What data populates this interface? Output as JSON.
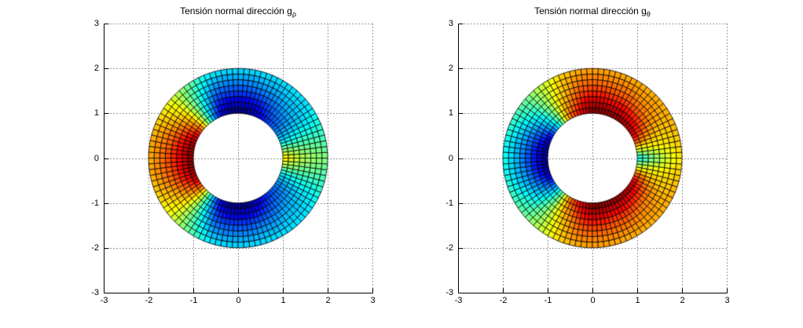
{
  "styles": {
    "background": "#ffffff",
    "axis_color": "#000000",
    "grid_color": "#3a3a3a",
    "mesh_edge_color": "#000000",
    "text_color": "#000000"
  },
  "chart_data": [
    {
      "type": "heatmap",
      "geometry": "annulus-mesh",
      "title": "Tensión normal dirección g_ρ",
      "title_base": "Tensión normal dirección g",
      "title_subscript": "ρ",
      "xlabel": "",
      "ylabel": "",
      "xlim": [
        -3,
        3
      ],
      "ylim": [
        -3,
        3
      ],
      "xticks": [
        -3,
        -2,
        -1,
        0,
        1,
        2,
        3
      ],
      "yticks": [
        -3,
        -2,
        -1,
        0,
        1,
        2,
        3
      ],
      "grid": "dotted",
      "colormap": "jet",
      "color_scale": {
        "min": -1,
        "max": 1
      },
      "annulus": {
        "inner_radius": 1,
        "outer_radius": 2,
        "n_theta": 96,
        "n_r": 8
      },
      "field": {
        "description": "normal stress in radial direction g_rho sampled on (theta,rho) grid, symmetric about x-axis; values normalized to colormap range",
        "symmetric_about_x_axis": true,
        "theta_deg": [
          0,
          10,
          20,
          30,
          40,
          50,
          60,
          70,
          80,
          90,
          100,
          110,
          120,
          130,
          140,
          150,
          160,
          170,
          180
        ],
        "rho": [
          1.0,
          1.25,
          1.5,
          1.75,
          2.0
        ],
        "values": [
          [
            0.35,
            0.2,
            0.1,
            0.05,
            0.0
          ],
          [
            0.05,
            0.0,
            -0.05,
            -0.05,
            -0.1
          ],
          [
            -0.3,
            -0.25,
            -0.2,
            -0.2,
            -0.15
          ],
          [
            -0.45,
            -0.4,
            -0.35,
            -0.3,
            -0.25
          ],
          [
            -0.55,
            -0.5,
            -0.4,
            -0.35,
            -0.3
          ],
          [
            -0.65,
            -0.55,
            -0.45,
            -0.35,
            -0.3
          ],
          [
            -0.75,
            -0.65,
            -0.5,
            -0.4,
            -0.3
          ],
          [
            -0.9,
            -0.75,
            -0.55,
            -0.4,
            -0.3
          ],
          [
            -1.0,
            -0.8,
            -0.6,
            -0.45,
            -0.3
          ],
          [
            -1.0,
            -0.8,
            -0.6,
            -0.45,
            -0.3
          ],
          [
            -1.0,
            -0.8,
            -0.6,
            -0.45,
            -0.3
          ],
          [
            -0.85,
            -0.7,
            -0.55,
            -0.4,
            -0.25
          ],
          [
            -0.5,
            -0.4,
            -0.3,
            -0.2,
            -0.1
          ],
          [
            0.0,
            0.0,
            0.0,
            0.0,
            0.05
          ],
          [
            0.5,
            0.4,
            0.3,
            0.25,
            0.2
          ],
          [
            0.8,
            0.6,
            0.45,
            0.35,
            0.3
          ],
          [
            0.95,
            0.75,
            0.55,
            0.45,
            0.35
          ],
          [
            1.0,
            0.8,
            0.6,
            0.5,
            0.4
          ],
          [
            1.0,
            0.8,
            0.65,
            0.5,
            0.4
          ]
        ]
      }
    },
    {
      "type": "heatmap",
      "geometry": "annulus-mesh",
      "title": "Tensión normal dirección g_θ",
      "title_base": "Tensión normal dirección g",
      "title_subscript": "θ",
      "xlabel": "",
      "ylabel": "",
      "xlim": [
        -3,
        3
      ],
      "ylim": [
        -3,
        3
      ],
      "xticks": [
        -3,
        -2,
        -1,
        0,
        1,
        2,
        3
      ],
      "yticks": [
        -3,
        -2,
        -1,
        0,
        1,
        2,
        3
      ],
      "grid": "dotted",
      "colormap": "jet",
      "color_scale": {
        "min": -1,
        "max": 1
      },
      "annulus": {
        "inner_radius": 1,
        "outer_radius": 2,
        "n_theta": 96,
        "n_r": 8
      },
      "field": {
        "description": "normal stress in tangential direction g_theta sampled on (theta,rho) grid, symmetric about x-axis; values normalized to colormap range",
        "symmetric_about_x_axis": true,
        "theta_deg": [
          0,
          10,
          20,
          30,
          40,
          50,
          60,
          70,
          80,
          90,
          100,
          110,
          120,
          130,
          140,
          150,
          160,
          170,
          180
        ],
        "rho": [
          1.0,
          1.25,
          1.5,
          1.75,
          2.0
        ],
        "values": [
          [
            -0.3,
            -0.1,
            0.05,
            0.2,
            0.3
          ],
          [
            0.15,
            0.2,
            0.25,
            0.3,
            0.35
          ],
          [
            0.6,
            0.45,
            0.35,
            0.35,
            0.4
          ],
          [
            0.85,
            0.6,
            0.45,
            0.4,
            0.4
          ],
          [
            0.95,
            0.7,
            0.5,
            0.45,
            0.4
          ],
          [
            1.0,
            0.75,
            0.55,
            0.45,
            0.4
          ],
          [
            1.0,
            0.8,
            0.6,
            0.48,
            0.4
          ],
          [
            1.0,
            0.8,
            0.6,
            0.5,
            0.4
          ],
          [
            1.0,
            0.85,
            0.65,
            0.5,
            0.42
          ],
          [
            1.0,
            0.85,
            0.65,
            0.52,
            0.42
          ],
          [
            0.9,
            0.75,
            0.6,
            0.5,
            0.4
          ],
          [
            0.7,
            0.55,
            0.45,
            0.4,
            0.35
          ],
          [
            0.5,
            0.4,
            0.3,
            0.25,
            0.2
          ],
          [
            -0.05,
            0.0,
            0.05,
            0.05,
            0.1
          ],
          [
            -0.4,
            -0.3,
            -0.2,
            -0.1,
            -0.05
          ],
          [
            -0.7,
            -0.5,
            -0.35,
            -0.2,
            -0.1
          ],
          [
            -0.9,
            -0.65,
            -0.45,
            -0.3,
            -0.15
          ],
          [
            -1.0,
            -0.75,
            -0.5,
            -0.35,
            -0.2
          ],
          [
            -1.0,
            -0.75,
            -0.55,
            -0.35,
            -0.2
          ]
        ]
      }
    }
  ]
}
